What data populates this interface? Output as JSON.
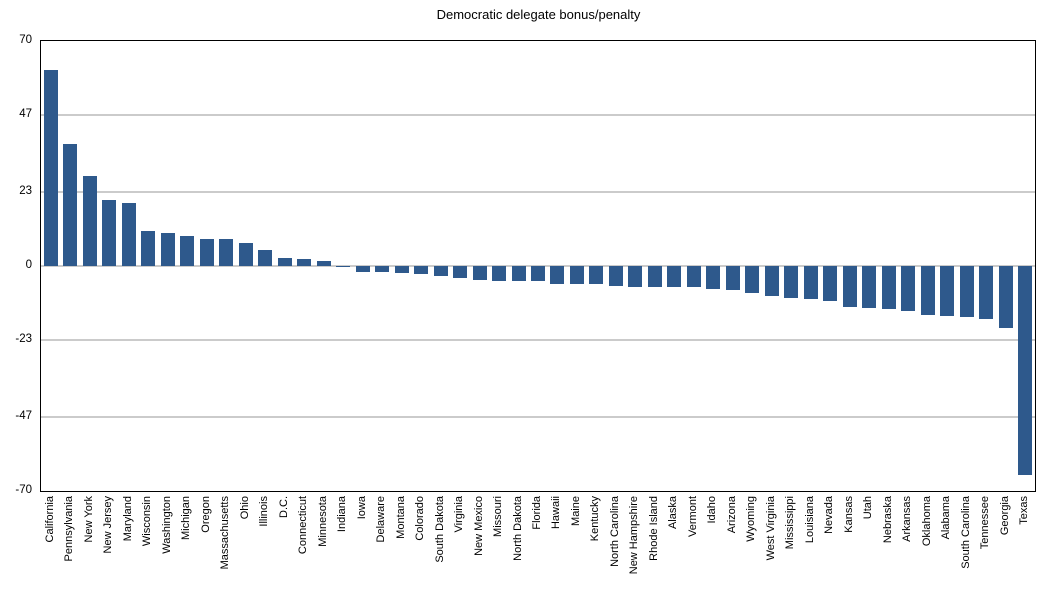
{
  "chart_data": {
    "type": "bar",
    "title": "Democratic delegate bonus/penalty",
    "xlabel": "",
    "ylabel": "",
    "ylim": [
      -70,
      70
    ],
    "yticks": [
      70,
      47,
      23,
      0,
      -23,
      -47,
      -70
    ],
    "grid": true,
    "legend": "none",
    "bar_color": "#2e598c",
    "categories": [
      "California",
      "Pennsylvania",
      "New York",
      "New Jersey",
      "Maryland",
      "Wisconsin",
      "Washington",
      "Michigan",
      "Oregon",
      "Massachusetts",
      "Ohio",
      "Illinois",
      "D.C.",
      "Connecticut",
      "Minnesota",
      "Indiana",
      "Iowa",
      "Delaware",
      "Montana",
      "Colorado",
      "South Dakota",
      "Virginia",
      "New Mexico",
      "Missouri",
      "North Dakota",
      "Florida",
      "Hawaii",
      "Maine",
      "Kentucky",
      "North Carolina",
      "New Hampshire",
      "Rhode Island",
      "Alaska",
      "Vermont",
      "Idaho",
      "Arizona",
      "Wyoming",
      "West Virginia",
      "Mississippi",
      "Louisiana",
      "Nevada",
      "Kansas",
      "Utah",
      "Nebraska",
      "Arkansas",
      "Oklahoma",
      "Alabama",
      "South Carolina",
      "Tennessee",
      "Georgia",
      "Texas"
    ],
    "values": [
      61,
      38,
      28,
      20.4,
      19.7,
      10.9,
      10.4,
      9.2,
      8.4,
      8.4,
      7.1,
      4.9,
      2.4,
      2.1,
      1.5,
      -0.3,
      -1.8,
      -2,
      -2.2,
      -2.5,
      -3,
      -3.8,
      -4.4,
      -4.6,
      -4.7,
      -4.8,
      -5.5,
      -5.6,
      -5.7,
      -6.3,
      -6.4,
      -6.4,
      -6.5,
      -6.5,
      -7.3,
      -7.4,
      -8.3,
      -9.2,
      -9.8,
      -10.2,
      -10.8,
      -12.7,
      -13.1,
      -13.4,
      -14,
      -15.3,
      -15.6,
      -15.8,
      -16.6,
      -19.4,
      -65
    ]
  },
  "colors": {
    "bar": "#2e598c",
    "gridline": "#cbcbcb",
    "frame": "#000000",
    "background": "#ffffff",
    "text": "#000000"
  }
}
